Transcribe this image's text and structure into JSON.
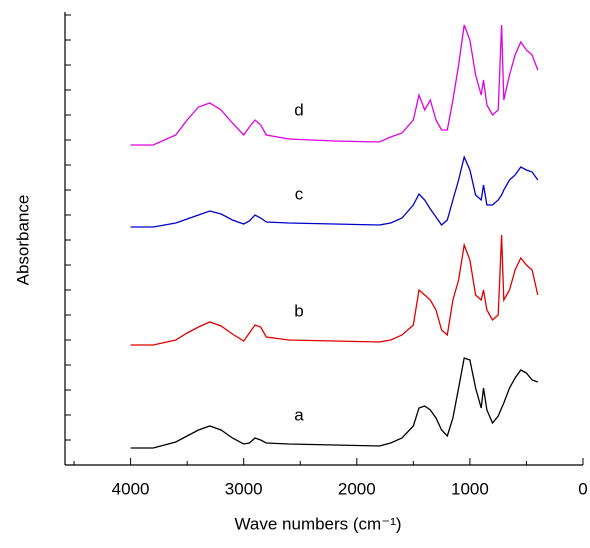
{
  "chart_data": {
    "type": "line",
    "xlabel": "Wave numbers (cm⁻¹)",
    "ylabel": "Absorbance",
    "xlim": [
      4580,
      0
    ],
    "xticks": [
      4000,
      3000,
      2000,
      1000,
      0
    ],
    "xminor_ticks": [
      4500,
      3500,
      2500,
      1500,
      500
    ],
    "ylim": [
      0,
      453
    ],
    "yticks": [
      0,
      25,
      50,
      75,
      100,
      125,
      150,
      175,
      200,
      225,
      250,
      275,
      300,
      325,
      350,
      375,
      400,
      425,
      450
    ],
    "show_ytick_labels": false,
    "legend": false,
    "grid": false,
    "x": [
      4000,
      3800,
      3600,
      3500,
      3400,
      3300,
      3200,
      3100,
      3000,
      2950,
      2900,
      2850,
      2800,
      2600,
      2200,
      1800,
      1700,
      1600,
      1500,
      1450,
      1400,
      1350,
      1300,
      1250,
      1200,
      1150,
      1100,
      1050,
      1000,
      950,
      900,
      880,
      850,
      800,
      750,
      720,
      700,
      650,
      600,
      550,
      500,
      450,
      400
    ],
    "series": [
      {
        "name": "a",
        "color": "#000000",
        "values": [
          17,
          17,
          23,
          29,
          35,
          39,
          35,
          27,
          21,
          22,
          27,
          25,
          22,
          21,
          20,
          19,
          22,
          27,
          39,
          57,
          59,
          55,
          47,
          35,
          29,
          47,
          77,
          107,
          105,
          77,
          57,
          77,
          55,
          42,
          49,
          57,
          62,
          77,
          87,
          95,
          92,
          85,
          83
        ]
      },
      {
        "name": "b",
        "color": "#e00000",
        "values": [
          120,
          120,
          125,
          132,
          138,
          143,
          139,
          131,
          124,
          132,
          140,
          138,
          128,
          125,
          124,
          123,
          125,
          130,
          140,
          175,
          170,
          165,
          155,
          135,
          130,
          165,
          185,
          220,
          205,
          170,
          165,
          175,
          155,
          145,
          150,
          230,
          165,
          175,
          195,
          207,
          200,
          195,
          170
        ]
      },
      {
        "name": "c",
        "color": "#0000cc",
        "values": [
          238,
          238,
          242,
          246,
          250,
          254,
          251,
          245,
          241,
          244,
          250,
          247,
          243,
          242,
          241,
          240,
          242,
          247,
          260,
          271,
          265,
          256,
          248,
          240,
          245,
          265,
          285,
          308,
          295,
          270,
          265,
          280,
          260,
          260,
          265,
          270,
          275,
          285,
          290,
          298,
          295,
          293,
          285
        ]
      },
      {
        "name": "d",
        "color": "#e000e0",
        "values": [
          320,
          320,
          330,
          345,
          358,
          362,
          355,
          342,
          330,
          338,
          345,
          340,
          330,
          326,
          324,
          323,
          328,
          332,
          345,
          370,
          355,
          365,
          345,
          335,
          335,
          365,
          400,
          440,
          425,
          390,
          370,
          385,
          360,
          350,
          355,
          440,
          365,
          390,
          410,
          423,
          415,
          410,
          395
        ]
      }
    ]
  }
}
